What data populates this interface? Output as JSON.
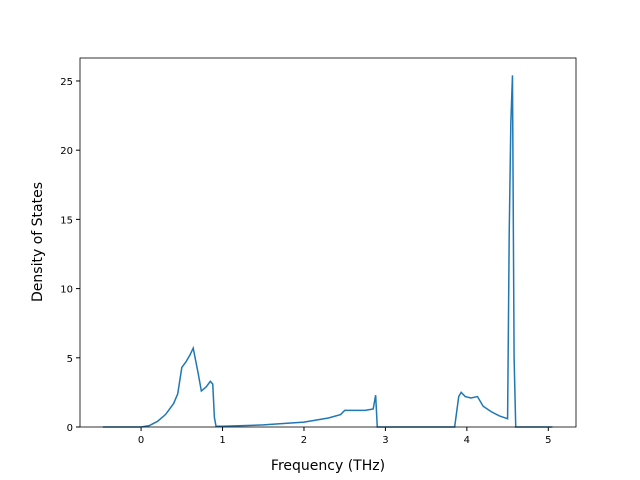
{
  "chart_data": {
    "type": "line",
    "x_label": "Frequency (THz)",
    "y_label": "Density of States",
    "series": [
      {
        "color": "#1f77b4",
        "x": [
          -0.47,
          0,
          0.1,
          0.2,
          0.3,
          0.4,
          0.45,
          0.5,
          0.55,
          0.6,
          0.64,
          0.7,
          0.74,
          0.8,
          0.85,
          0.88,
          0.9,
          0.92,
          1.0,
          1.5,
          2.0,
          2.3,
          2.45,
          2.5,
          2.6,
          2.75,
          2.85,
          2.88,
          2.9,
          3.0,
          3.85,
          3.9,
          3.93,
          3.98,
          4.05,
          4.13,
          4.2,
          4.3,
          4.4,
          4.5,
          4.52,
          4.54,
          4.56,
          4.58,
          4.6,
          5.05
        ],
        "values": [
          0,
          0,
          0.1,
          0.4,
          0.9,
          1.7,
          2.4,
          4.3,
          4.7,
          5.2,
          5.7,
          3.9,
          2.6,
          2.9,
          3.3,
          3.1,
          0.7,
          0.05,
          0.05,
          0.15,
          0.35,
          0.65,
          0.9,
          1.2,
          1.2,
          1.2,
          1.3,
          2.3,
          0,
          0,
          0,
          2.2,
          2.5,
          2.2,
          2.1,
          2.2,
          1.5,
          1.1,
          0.8,
          0.6,
          14,
          22,
          25.4,
          5,
          0,
          0
        ]
      }
    ],
    "xlim": [
      -0.75,
      5.34
    ],
    "ylim": [
      0,
      26.66
    ],
    "xticks": [
      0,
      1,
      2,
      3,
      4,
      5
    ],
    "yticks": [
      0,
      5,
      10,
      15,
      20,
      25
    ]
  }
}
